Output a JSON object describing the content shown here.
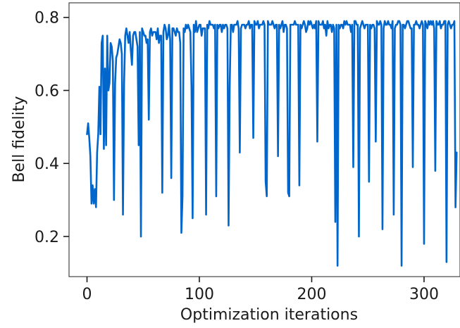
{
  "chart_data": {
    "type": "line",
    "title": "",
    "xlabel": "Optimization iterations",
    "ylabel": "Bell fidelity",
    "xlim": [
      -16,
      332
    ],
    "ylim": [
      0.09,
      0.84
    ],
    "xticks": [
      0,
      100,
      200,
      300
    ],
    "xtick_labels": [
      "0",
      "100",
      "200",
      "300"
    ],
    "yticks": [
      0.2,
      0.4,
      0.6,
      0.8
    ],
    "ytick_labels": [
      "0.2",
      "0.4",
      "0.6",
      "0.8"
    ],
    "grid": false,
    "legend": "none",
    "colors": {
      "line": "#0066cc"
    },
    "series": [
      {
        "values_note": "",
        "x": [
          0,
          1,
          2,
          3,
          4,
          5,
          6,
          7,
          8,
          9,
          10,
          11,
          12,
          13,
          14,
          15,
          16,
          17,
          18,
          19,
          20,
          21,
          22,
          23,
          24,
          25,
          26,
          27,
          28,
          29,
          30,
          31,
          32,
          33,
          34,
          35,
          36,
          37,
          38,
          39,
          40,
          41,
          42,
          43,
          44,
          45,
          46,
          47,
          48,
          49,
          50,
          51,
          52,
          53,
          54,
          55,
          56,
          57,
          58,
          59,
          60,
          61,
          62,
          63,
          64,
          65,
          66,
          67,
          68,
          69,
          70,
          71,
          72,
          73,
          74,
          75,
          76,
          77,
          78,
          79,
          80,
          81,
          82,
          83,
          84,
          85,
          86,
          87,
          88,
          89,
          90,
          91,
          92,
          93,
          94,
          95,
          96,
          97,
          98,
          99,
          100,
          101,
          102,
          103,
          104,
          105,
          106,
          107,
          108,
          109,
          110,
          111,
          112,
          113,
          114,
          115,
          116,
          117,
          118,
          119,
          120,
          121,
          122,
          123,
          124,
          125,
          126,
          127,
          128,
          129,
          130,
          131,
          132,
          133,
          134,
          135,
          136,
          137,
          138,
          139,
          140,
          141,
          142,
          143,
          144,
          145,
          146,
          147,
          148,
          149,
          150,
          151,
          152,
          153,
          154,
          155,
          156,
          157,
          158,
          159,
          160,
          161,
          162,
          163,
          164,
          165,
          166,
          167,
          168,
          169,
          170,
          171,
          172,
          173,
          174,
          175,
          176,
          177,
          178,
          179,
          180,
          181,
          182,
          183,
          184,
          185,
          186,
          187,
          188,
          189,
          190,
          191,
          192,
          193,
          194,
          195,
          196,
          197,
          198,
          199,
          200,
          201,
          202,
          203,
          204,
          205,
          206,
          207,
          208,
          209,
          210,
          211,
          212,
          213,
          214,
          215,
          216,
          217,
          218,
          219,
          220,
          221,
          222,
          223,
          224,
          225,
          226,
          227,
          228,
          229,
          230,
          231,
          232,
          233,
          234,
          235,
          236,
          237,
          238,
          239,
          240,
          241,
          242,
          243,
          244,
          245,
          246,
          247,
          248,
          249,
          250,
          251,
          252,
          253,
          254,
          255,
          256,
          257,
          258,
          259,
          260,
          261,
          262,
          263,
          264,
          265,
          266,
          267,
          268,
          269,
          270,
          271,
          272,
          273,
          274,
          275,
          276,
          277,
          278,
          279,
          280,
          281,
          282,
          283,
          284,
          285,
          286,
          287,
          288,
          289,
          290,
          291,
          292,
          293,
          294,
          295,
          296,
          297,
          298,
          299,
          300,
          301,
          302,
          303,
          304,
          305,
          306,
          307,
          308,
          309,
          310,
          311,
          312,
          313,
          314,
          315,
          316,
          317,
          318,
          319,
          320,
          321,
          322,
          323,
          324,
          325,
          326,
          327,
          328,
          329
        ],
        "values": [
          0.48,
          0.51,
          0.47,
          0.42,
          0.29,
          0.34,
          0.29,
          0.33,
          0.28,
          0.43,
          0.48,
          0.61,
          0.48,
          0.73,
          0.75,
          0.44,
          0.66,
          0.45,
          0.75,
          0.6,
          0.62,
          0.73,
          0.72,
          0.68,
          0.3,
          0.62,
          0.69,
          0.7,
          0.72,
          0.74,
          0.73,
          0.7,
          0.26,
          0.62,
          0.75,
          0.77,
          0.75,
          0.73,
          0.76,
          0.71,
          0.67,
          0.75,
          0.76,
          0.76,
          0.74,
          0.72,
          0.45,
          0.76,
          0.2,
          0.77,
          0.76,
          0.75,
          0.75,
          0.73,
          0.74,
          0.52,
          0.76,
          0.77,
          0.75,
          0.76,
          0.76,
          0.76,
          0.74,
          0.77,
          0.73,
          0.75,
          0.75,
          0.32,
          0.76,
          0.78,
          0.77,
          0.74,
          0.75,
          0.78,
          0.74,
          0.36,
          0.77,
          0.77,
          0.76,
          0.75,
          0.77,
          0.76,
          0.76,
          0.73,
          0.21,
          0.31,
          0.77,
          0.76,
          0.78,
          0.77,
          0.78,
          0.77,
          0.76,
          0.61,
          0.25,
          0.78,
          0.76,
          0.79,
          0.76,
          0.77,
          0.78,
          0.78,
          0.75,
          0.77,
          0.77,
          0.77,
          0.26,
          0.78,
          0.77,
          0.79,
          0.78,
          0.78,
          0.78,
          0.77,
          0.78,
          0.31,
          0.78,
          0.77,
          0.78,
          0.78,
          0.76,
          0.78,
          0.77,
          0.78,
          0.78,
          0.77,
          0.23,
          0.61,
          0.78,
          0.78,
          0.76,
          0.78,
          0.78,
          0.78,
          0.79,
          0.77,
          0.43,
          0.77,
          0.78,
          0.78,
          0.78,
          0.77,
          0.78,
          0.78,
          0.79,
          0.77,
          0.78,
          0.78,
          0.47,
          0.79,
          0.78,
          0.78,
          0.79,
          0.77,
          0.78,
          0.78,
          0.78,
          0.79,
          0.78,
          0.35,
          0.31,
          0.79,
          0.78,
          0.78,
          0.78,
          0.79,
          0.78,
          0.77,
          0.78,
          0.78,
          0.42,
          0.78,
          0.77,
          0.78,
          0.79,
          0.76,
          0.78,
          0.78,
          0.77,
          0.32,
          0.31,
          0.78,
          0.78,
          0.78,
          0.78,
          0.79,
          0.78,
          0.78,
          0.78,
          0.34,
          0.78,
          0.77,
          0.78,
          0.79,
          0.78,
          0.76,
          0.77,
          0.79,
          0.78,
          0.79,
          0.78,
          0.77,
          0.78,
          0.77,
          0.79,
          0.46,
          0.79,
          0.78,
          0.78,
          0.78,
          0.79,
          0.77,
          0.78,
          0.75,
          0.79,
          0.77,
          0.78,
          0.78,
          0.76,
          0.78,
          0.77,
          0.24,
          0.78,
          0.12,
          0.78,
          0.77,
          0.78,
          0.78,
          0.77,
          0.79,
          0.78,
          0.79,
          0.78,
          0.78,
          0.78,
          0.76,
          0.78,
          0.39,
          0.79,
          0.79,
          0.78,
          0.78,
          0.2,
          0.77,
          0.78,
          0.79,
          0.78,
          0.77,
          0.78,
          0.78,
          0.78,
          0.35,
          0.78,
          0.77,
          0.78,
          0.78,
          0.77,
          0.46,
          0.79,
          0.78,
          0.78,
          0.79,
          0.78,
          0.22,
          0.77,
          0.79,
          0.78,
          0.78,
          0.79,
          0.78,
          0.78,
          0.77,
          0.79,
          0.26,
          0.77,
          0.78,
          0.78,
          0.79,
          0.79,
          0.78,
          0.12,
          0.78,
          0.78,
          0.77,
          0.78,
          0.79,
          0.79,
          0.78,
          0.77,
          0.77,
          0.39,
          0.78,
          0.78,
          0.79,
          0.78,
          0.78,
          0.77,
          0.78,
          0.79,
          0.78,
          0.18,
          0.79,
          0.78,
          0.77,
          0.79,
          0.78,
          0.79,
          0.78,
          0.79,
          0.77,
          0.38,
          0.79,
          0.78,
          0.78,
          0.79,
          0.77,
          0.78,
          0.78,
          0.79,
          0.79,
          0.13,
          0.78,
          0.79,
          0.78,
          0.77,
          0.78,
          0.78,
          0.79,
          0.28,
          0.43
        ]
      }
    ]
  }
}
